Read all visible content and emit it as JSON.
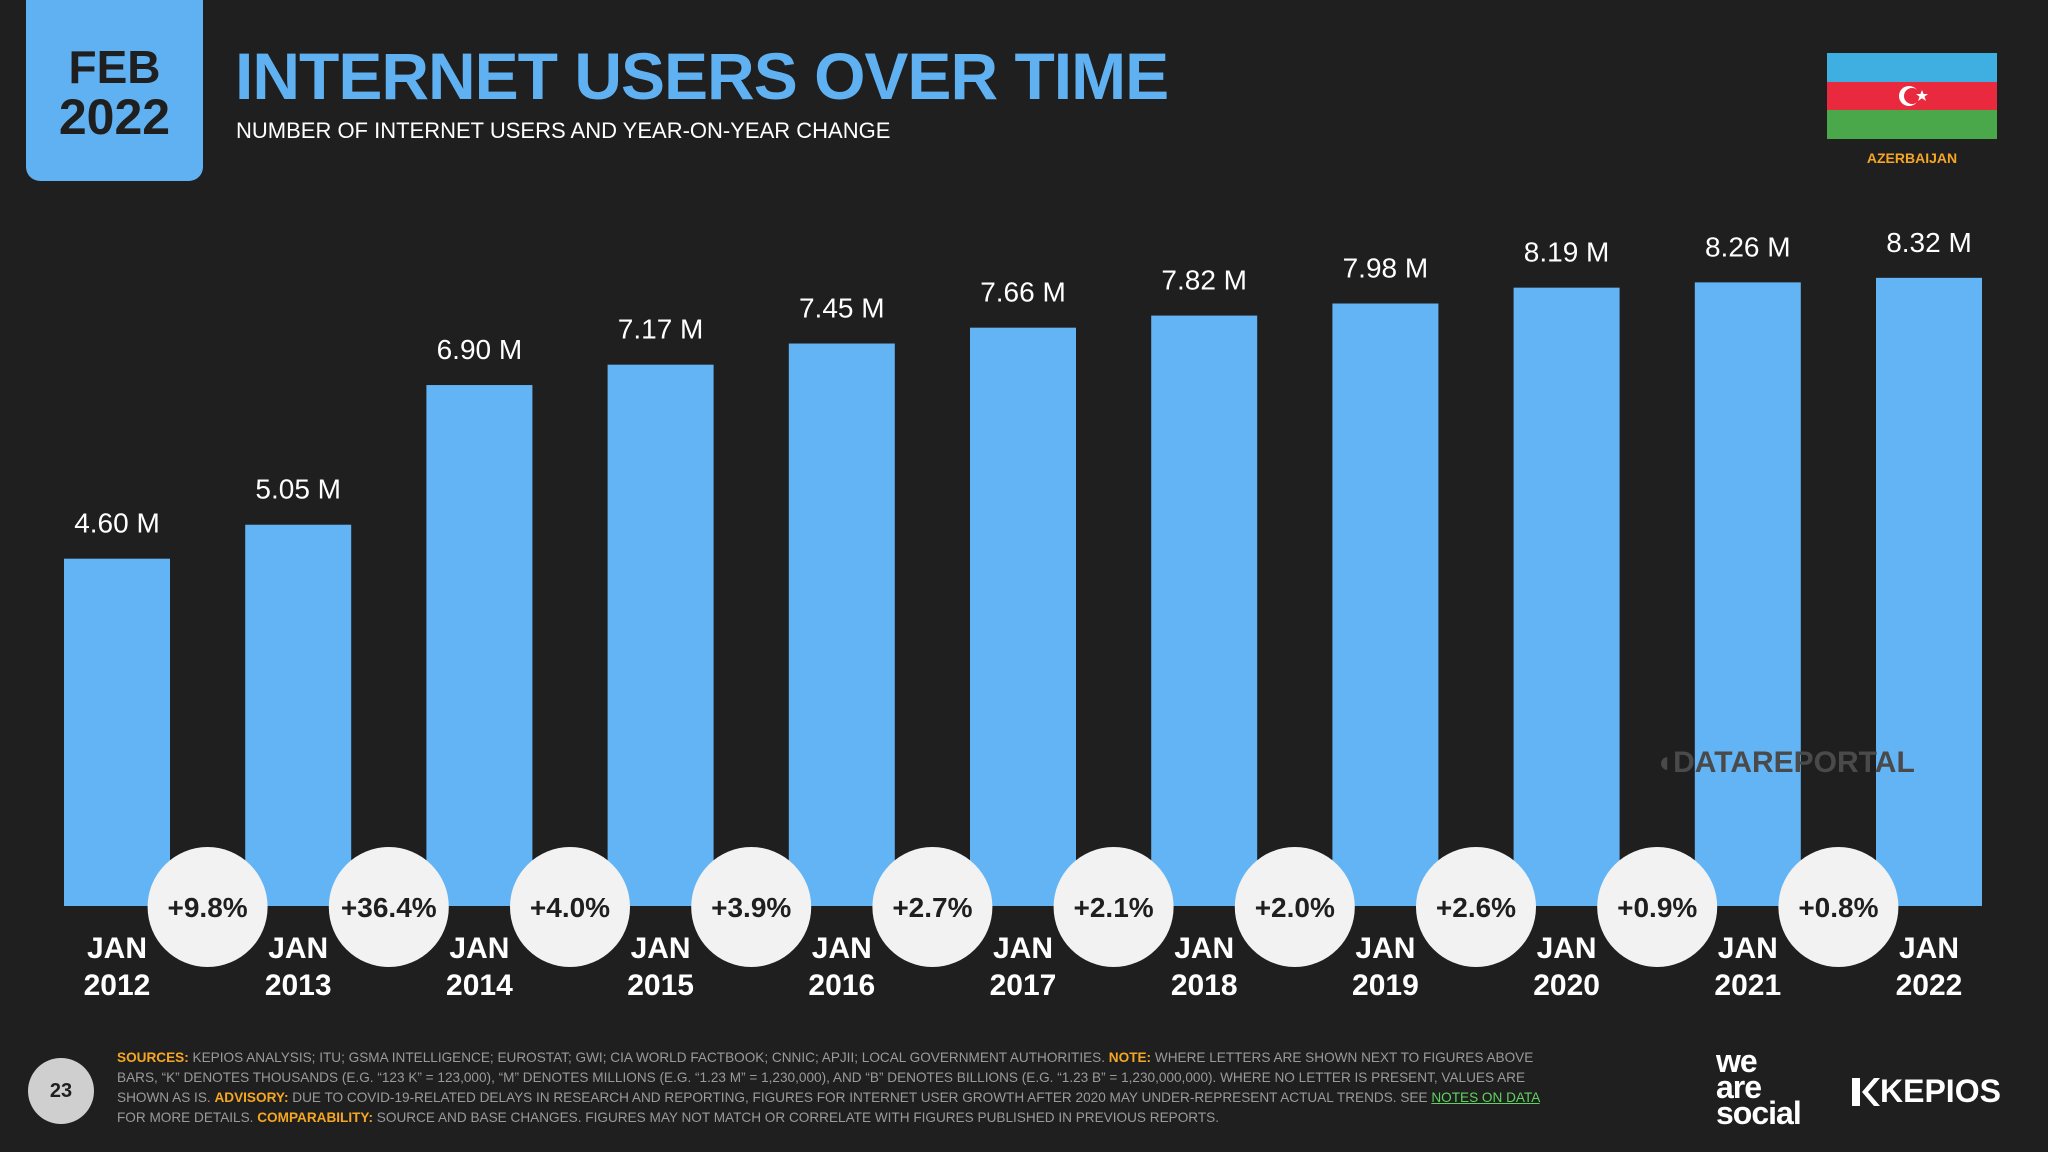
{
  "header": {
    "date_month": "FEB",
    "date_year": "2022",
    "title": "INTERNET USERS OVER TIME",
    "subtitle": "NUMBER OF INTERNET USERS AND YEAR-ON-YEAR CHANGE",
    "country": "AZERBAIJAN"
  },
  "colors": {
    "bar": "#63b4f4",
    "background": "#1f1f1f",
    "accent_orange": "#f5a623",
    "flag_blue": "#3faee0",
    "flag_red": "#e8293e",
    "flag_green": "#4aa84a"
  },
  "chart_data": {
    "type": "bar",
    "title": "INTERNET USERS OVER TIME",
    "categories": [
      "JAN 2012",
      "JAN 2013",
      "JAN 2014",
      "JAN 2015",
      "JAN 2016",
      "JAN 2017",
      "JAN 2018",
      "JAN 2019",
      "JAN 2020",
      "JAN 2021",
      "JAN 2022"
    ],
    "category_lines": [
      [
        "JAN",
        "2012"
      ],
      [
        "JAN",
        "2013"
      ],
      [
        "JAN",
        "2014"
      ],
      [
        "JAN",
        "2015"
      ],
      [
        "JAN",
        "2016"
      ],
      [
        "JAN",
        "2017"
      ],
      [
        "JAN",
        "2018"
      ],
      [
        "JAN",
        "2019"
      ],
      [
        "JAN",
        "2020"
      ],
      [
        "JAN",
        "2021"
      ],
      [
        "JAN",
        "2022"
      ]
    ],
    "values": [
      4.6,
      5.05,
      6.9,
      7.17,
      7.45,
      7.66,
      7.82,
      7.98,
      8.19,
      8.26,
      8.32
    ],
    "value_labels": [
      "4.60 M",
      "5.05 M",
      "6.90 M",
      "7.17 M",
      "7.45 M",
      "7.66 M",
      "7.82 M",
      "7.98 M",
      "8.19 M",
      "8.26 M",
      "8.32 M"
    ],
    "unit": "M",
    "yoy_change": [
      "+9.8%",
      "+36.4%",
      "+4.0%",
      "+3.9%",
      "+2.7%",
      "+2.1%",
      "+2.0%",
      "+2.6%",
      "+0.9%",
      "+0.8%"
    ],
    "xlabel": "",
    "ylabel": "",
    "grid": false,
    "legend": "none"
  },
  "watermark": "DATAREPORTAL",
  "footer": {
    "page_number": "23",
    "sources_key": "SOURCES:",
    "sources_text": " KEPIOS ANALYSIS; ITU; GSMA INTELLIGENCE; EUROSTAT; GWI; CIA WORLD FACTBOOK; CNNIC; APJII; LOCAL GOVERNMENT AUTHORITIES. ",
    "note_key": "NOTE:",
    "note_text": " WHERE LETTERS ARE SHOWN NEXT TO FIGURES ABOVE BARS, “K” DENOTES THOUSANDS (E.G. “123 K” = 123,000), “M” DENOTES MILLIONS (E.G. “1.23 M” = 1,230,000), AND “B” DENOTES BILLIONS (E.G. “1.23 B” = 1,230,000,000). WHERE NO LETTER IS PRESENT, VALUES ARE SHOWN AS IS. ",
    "advisory_key": "ADVISORY:",
    "advisory_text": " DUE TO COVID-19-RELATED DELAYS IN RESEARCH AND REPORTING, FIGURES FOR INTERNET USER GROWTH AFTER 2020 MAY UNDER-REPRESENT ACTUAL TRENDS. SEE ",
    "notes_link": "NOTES ON DATA",
    "notes_after": " FOR MORE DETAILS. ",
    "comparability_key": "COMPARABILITY:",
    "comparability_text": " SOURCE AND BASE CHANGES. FIGURES MAY NOT MATCH OR CORRELATE WITH FIGURES PUBLISHED IN PREVIOUS REPORTS.",
    "brand_we": "we",
    "brand_are": "are",
    "brand_social": "social",
    "brand_kepios": "KEPIOS"
  }
}
